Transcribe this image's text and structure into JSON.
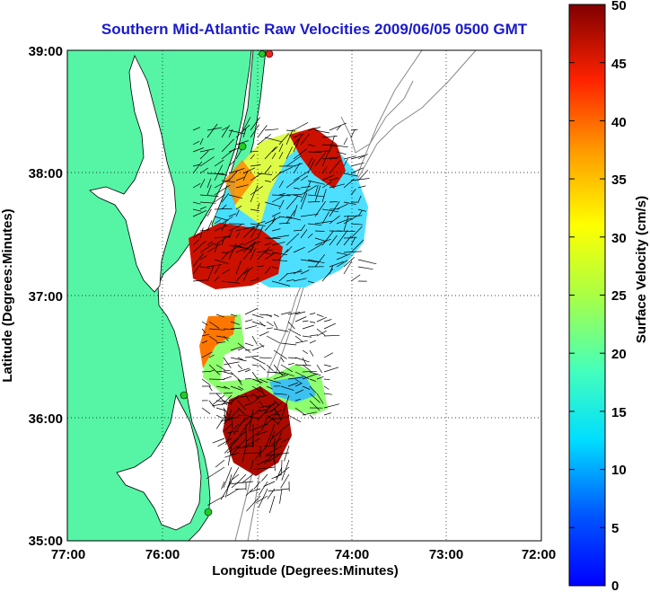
{
  "title": "Southern Mid-Atlantic Raw Velocities 2009/06/05 0500 GMT",
  "xlabel": "Longitude (Degrees:Minutes)",
  "ylabel": "Latitude (Degrees:Minutes)",
  "colorbar_label": "Surface Velocity (cm/s)",
  "x_ticks": [
    "77:00",
    "76:00",
    "75:00",
    "74:00",
    "73:00",
    "72:00"
  ],
  "y_ticks": [
    "39:00",
    "38:00",
    "37:00",
    "36:00",
    "35:00"
  ],
  "colorbar_ticks": [
    "50",
    "45",
    "40",
    "35",
    "30",
    "25",
    "20",
    "15",
    "10",
    "5",
    "0"
  ],
  "colors": {
    "land": "#55f5a5",
    "title": "#1a1acc",
    "station_green": "#22cc22",
    "station_red": "#ee2222"
  },
  "chart_data": {
    "type": "heatmap",
    "xlim": [
      -77,
      -72
    ],
    "ylim": [
      35,
      39
    ],
    "clim": [
      0,
      50
    ],
    "colormap": "jet",
    "grid": true,
    "legend_position": "right colorbar"
  }
}
